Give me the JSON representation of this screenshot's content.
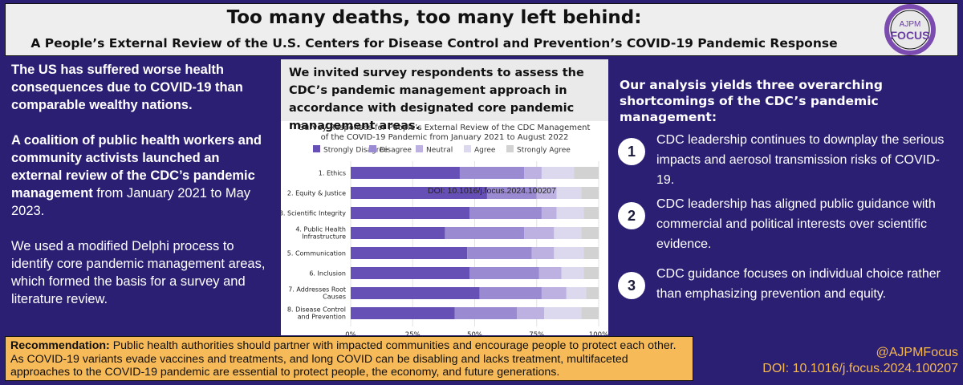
{
  "header": {
    "title": "Too many deaths, too many left behind:",
    "subtitle": "A People’s External Review of the U.S. Centers for Disease Control and Prevention’s COVID-19 Pandemic Response",
    "logo": {
      "top_text": "AJPM",
      "main_text": "FOCUS",
      "icon": "ajpm-focus-logo"
    }
  },
  "left": {
    "p1": "The US has suffered worse health consequences due to COVID-19 than comparable wealthy nations.",
    "p2_bold": "A coalition of public health workers and community activists launched an external review of the CDC’s pandemic management",
    "p2_rest": " from January 2021 to May 2023.",
    "p3": "We used a modified Delphi process to identify core pandemic management areas, which formed the basis for a survey and literature review."
  },
  "middle": {
    "heading": "We invited survey respondents to assess the CDC’s pandemic management approach in accordance with designated core pandemic management areas."
  },
  "chart_data": {
    "type": "bar",
    "orientation": "horizontal",
    "stacked": true,
    "title": "Survey Responses for People’s External Review of the CDC Management of the COVID-19 Pandemic from January 2021 to August 2022",
    "watermark": "DOI: 10.1016/j.focus.2024.100207",
    "categories": [
      "1. Ethics",
      "2. Equity & Justice",
      "3. Scientific Integrity",
      "4. Public Health Infrastructure",
      "5. Communication",
      "6. Inclusion",
      "7. Addresses Root Causes",
      "8. Disease Control and Prevention"
    ],
    "series": [
      {
        "name": "Strongly Disagree",
        "color": "#6750b5",
        "values": [
          44,
          55,
          48,
          38,
          47,
          48,
          52,
          42
        ]
      },
      {
        "name": "Disagree",
        "color": "#9a8ad1",
        "values": [
          26,
          20,
          29,
          32,
          26,
          28,
          25,
          25
        ]
      },
      {
        "name": "Neutral",
        "color": "#bcb1e1",
        "values": [
          7,
          8,
          6,
          12,
          9,
          9,
          10,
          11
        ]
      },
      {
        "name": "Agree",
        "color": "#dcd8ee",
        "values": [
          13,
          10,
          11,
          11,
          12,
          9,
          8,
          15
        ]
      },
      {
        "name": "Strongly Agree",
        "color": "#d2d2d2",
        "values": [
          10,
          7,
          6,
          7,
          6,
          6,
          5,
          7
        ]
      }
    ],
    "x_ticks": [
      "0%",
      "25%",
      "50%",
      "75%",
      "100%"
    ],
    "xlim": [
      0,
      100
    ]
  },
  "right": {
    "intro": "Our analysis yields three overarching shortcomings of the CDC’s pandemic management:",
    "points": [
      {
        "num": "1",
        "text": "CDC leadership continues to downplay the serious impacts and aerosol transmission risks of COVID-19."
      },
      {
        "num": "2",
        "text": "CDC leadership has aligned public guidance with commercial and political interests over scientific evidence."
      },
      {
        "num": "3",
        "text": "CDC guidance focuses on individual choice rather than emphasizing prevention and equity."
      }
    ]
  },
  "recommendation": {
    "label": "Recommendation:",
    "text": " Public health authorities should partner with impacted communities and encourage people to protect each other. As COVID-19 variants evade vaccines and treatments, and long COVID can be disabling and lacks treatment, multifaceted approaches to the COVID-19 pandemic are essential to protect people, the economy, and future generations."
  },
  "credits": {
    "handle": "@AJPMFocus",
    "doi": "DOI: 10.1016/j.focus.2024.100207"
  }
}
